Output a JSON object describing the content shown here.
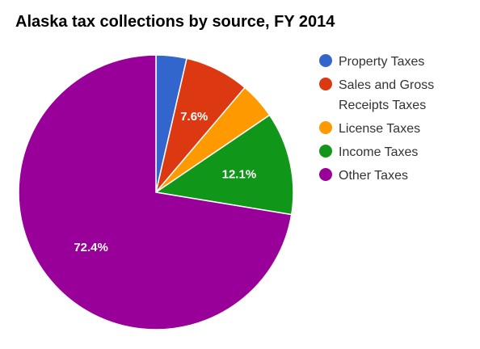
{
  "chart_data": {
    "type": "pie",
    "title": "Alaska tax collections by source, FY 2014",
    "legend_position": "right",
    "slices": [
      {
        "name": "Property Taxes",
        "value": 3.6,
        "label": "",
        "color": "#3366cc"
      },
      {
        "name": "Sales and Gross Receipts Taxes",
        "value": 7.6,
        "label": "7.6%",
        "color": "#dc3912"
      },
      {
        "name": "License Taxes",
        "value": 4.3,
        "label": "",
        "color": "#ff9900"
      },
      {
        "name": "Income Taxes",
        "value": 12.1,
        "label": "12.1%",
        "color": "#109618"
      },
      {
        "name": "Other Taxes",
        "value": 72.4,
        "label": "72.4%",
        "color": "#990099"
      }
    ]
  },
  "legend": {
    "items": [
      {
        "lines": [
          "Property Taxes"
        ],
        "color": "#3366cc"
      },
      {
        "lines": [
          "Sales and Gross",
          "Receipts Taxes"
        ],
        "color": "#dc3912"
      },
      {
        "lines": [
          "License Taxes"
        ],
        "color": "#ff9900"
      },
      {
        "lines": [
          "Income Taxes"
        ],
        "color": "#109618"
      },
      {
        "lines": [
          "Other Taxes"
        ],
        "color": "#990099"
      }
    ]
  }
}
